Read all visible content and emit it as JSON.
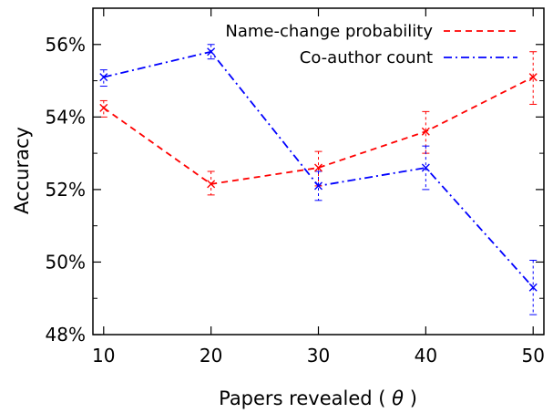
{
  "chart_data": {
    "type": "line",
    "title": "",
    "xlabel": "Papers revealed",
    "xlabel_symbol": "θ",
    "ylabel": "Accuracy",
    "x": [
      10,
      20,
      30,
      40,
      50
    ],
    "x_tick_labels": [
      "10",
      "20",
      "30",
      "40",
      "50"
    ],
    "y_tick_labels": [
      "48%",
      "50%",
      "52%",
      "54%",
      "56%"
    ],
    "xlim": [
      9,
      51
    ],
    "ylim": [
      48,
      57
    ],
    "y_ticks": [
      48,
      50,
      52,
      54,
      56
    ],
    "x_ticks": [
      10,
      20,
      30,
      40,
      50
    ],
    "grid": false,
    "legend_position": "top-right",
    "series": [
      {
        "name": "Name-change probability",
        "color": "#ff0000",
        "line_style": "dashed",
        "marker": "x",
        "values": [
          54.25,
          52.15,
          52.6,
          53.6,
          55.1
        ],
        "error_low": [
          54.0,
          51.85,
          52.1,
          53.0,
          54.35
        ],
        "error_high": [
          54.45,
          52.5,
          53.05,
          54.15,
          55.8
        ]
      },
      {
        "name": "Co-author count",
        "color": "#0000ff",
        "line_style": "dash-dot",
        "marker": "x",
        "values": [
          55.1,
          55.8,
          52.1,
          52.6,
          49.3
        ],
        "error_low": [
          54.85,
          55.6,
          51.7,
          52.0,
          48.55
        ],
        "error_high": [
          55.3,
          56.0,
          52.5,
          53.2,
          50.05
        ]
      }
    ]
  }
}
